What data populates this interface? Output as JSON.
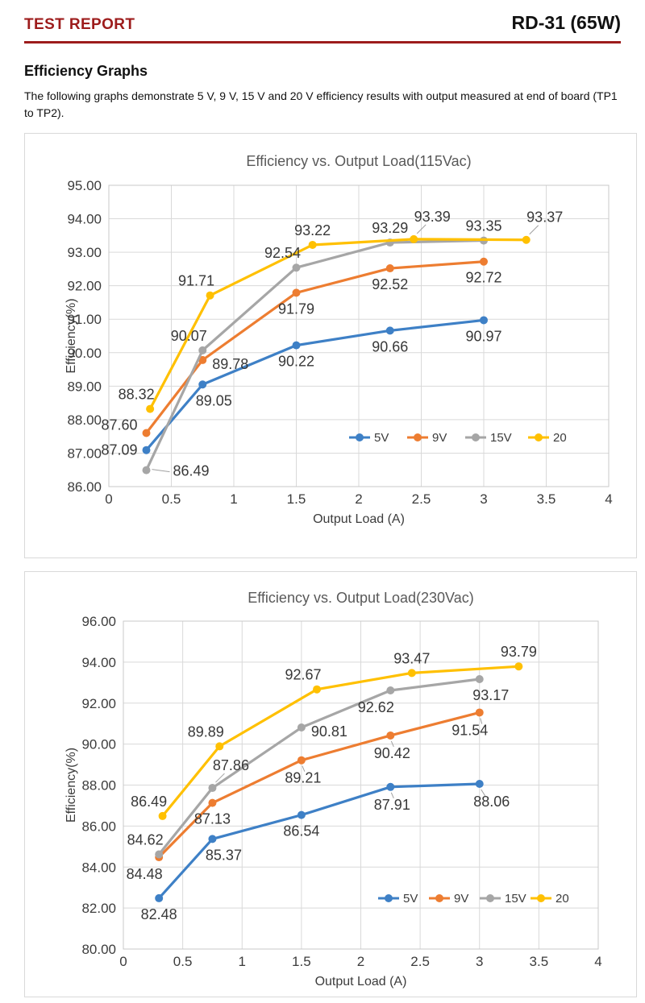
{
  "header": {
    "report_label": "TEST REPORT",
    "model_label": "RD-31 (65W)",
    "accent_color": "#9D1C1C"
  },
  "section": {
    "heading": "Efficiency Graphs",
    "body": "The following graphs demonstrate 5 V, 9 V, 15 V and 20 V efficiency results with output measured at end of board (TP1 to TP2)."
  },
  "chart_colors": {
    "blue": "#3E80C6",
    "orange": "#ED7D31",
    "gray": "#A6A6A6",
    "yellow": "#FFC000",
    "grid": "#D9D9D9",
    "plot_border": "#C8C8C8",
    "title_text": "#595959",
    "tick_text": "#3C3C3C",
    "label_text": "#383838",
    "leader": "#A0A0A0"
  },
  "chart_data": [
    {
      "type": "line",
      "title": "Efficiency vs. Output Load(115Vac)",
      "xlabel": "Output Load (A)",
      "ylabel": "Efficiency(%)",
      "xlim": [
        0,
        4
      ],
      "ylim": [
        86,
        95
      ],
      "grid": true,
      "legend_position": "inside-right-middle",
      "xticks": [
        "0",
        "0.5",
        "1",
        "1.5",
        "2",
        "2.5",
        "3",
        "3.5",
        "4"
      ],
      "yticks": [
        "95.00",
        "94.00",
        "93.00",
        "92.00",
        "91.00",
        "90.00",
        "89.00",
        "88.00",
        "87.00",
        "86.00"
      ],
      "series": [
        {
          "name": "5V",
          "color": "#3E80C6",
          "x": [
            0.3,
            0.75,
            1.5,
            2.25,
            3
          ],
          "y": [
            87.09,
            89.05,
            90.22,
            90.66,
            90.97
          ],
          "labels": [
            "87.09",
            "89.05",
            "90.22",
            "90.66",
            "90.97"
          ],
          "label_placement": [
            "left",
            "below-right",
            "below",
            "below",
            "below"
          ]
        },
        {
          "name": "9V",
          "color": "#ED7D31",
          "x": [
            0.3,
            0.75,
            1.5,
            2.25,
            3
          ],
          "y": [
            87.6,
            89.78,
            91.79,
            92.52,
            92.72
          ],
          "labels": [
            "87.60",
            "89.78",
            "91.79",
            "92.52",
            "92.72"
          ],
          "label_placement": [
            "left-up",
            "right",
            "below",
            "below",
            "below"
          ]
        },
        {
          "name": "15V",
          "color": "#A6A6A6",
          "x": [
            0.3,
            0.75,
            1.5,
            2.25,
            3
          ],
          "y": [
            86.49,
            90.07,
            92.54,
            93.29,
            93.35
          ],
          "labels": [
            "86.49",
            "90.07",
            "92.54",
            "93.29",
            "93.35"
          ],
          "label_placement": [
            "right-leader",
            "above-left",
            "above-left",
            "above",
            "above"
          ]
        },
        {
          "name": "20",
          "color": "#FFC000",
          "x": [
            0.33,
            0.81,
            1.63,
            2.44,
            3.34
          ],
          "y": [
            88.32,
            91.71,
            93.22,
            93.39,
            93.37
          ],
          "labels": [
            "88.32",
            "91.71",
            "93.22",
            "93.39",
            "93.37"
          ],
          "label_placement": [
            "above-left",
            "above-left",
            "above",
            "above-right-leader",
            "above-right-leader"
          ]
        }
      ]
    },
    {
      "type": "line",
      "title": "Efficiency vs. Output Load(230Vac)",
      "xlabel": "Output Load (A)",
      "ylabel": "Efficiency(%)",
      "xlim": [
        0,
        4
      ],
      "ylim": [
        80,
        96
      ],
      "grid": true,
      "legend_position": "inside-right-middle",
      "xticks": [
        "0",
        "0.5",
        "1",
        "1.5",
        "2",
        "2.5",
        "3",
        "3.5",
        "4"
      ],
      "yticks": [
        "96.00",
        "94.00",
        "92.00",
        "90.00",
        "88.00",
        "86.00",
        "84.00",
        "82.00",
        "80.00"
      ],
      "series": [
        {
          "name": "5V",
          "color": "#3E80C6",
          "x": [
            0.3,
            0.75,
            1.5,
            2.25,
            3
          ],
          "y": [
            82.48,
            85.37,
            86.54,
            87.91,
            88.06
          ],
          "labels": [
            "82.48",
            "85.37",
            "86.54",
            "87.91",
            "88.06"
          ],
          "label_placement": [
            "below",
            "below-right",
            "below",
            "below-tick",
            "below-right-tick"
          ]
        },
        {
          "name": "9V",
          "color": "#ED7D31",
          "x": [
            0.3,
            0.75,
            1.5,
            2.25,
            3
          ],
          "y": [
            84.48,
            87.13,
            89.21,
            90.42,
            91.54
          ],
          "labels": [
            "84.48",
            "87.13",
            "89.21",
            "90.42",
            "91.54"
          ],
          "label_placement": [
            "below-left",
            "below",
            "below-tick",
            "below-tick",
            "below-left-tick"
          ]
        },
        {
          "name": "15V",
          "color": "#A6A6A6",
          "x": [
            0.3,
            0.75,
            1.5,
            2.25,
            3
          ],
          "y": [
            84.62,
            87.86,
            90.81,
            92.62,
            93.17
          ],
          "labels": [
            "84.62",
            "87.86",
            "90.81",
            "92.62",
            "93.17"
          ],
          "label_placement": [
            "above-left",
            "above-right-leader",
            "right",
            "below-left",
            "below-right"
          ]
        },
        {
          "name": "20",
          "color": "#FFC000",
          "x": [
            0.33,
            0.81,
            1.63,
            2.43,
            3.33
          ],
          "y": [
            86.49,
            89.89,
            92.67,
            93.47,
            93.79
          ],
          "labels": [
            "86.49",
            "89.89",
            "92.67",
            "93.47",
            "93.79"
          ],
          "label_placement": [
            "above-left",
            "above-left",
            "above-left",
            "above",
            "above"
          ]
        }
      ]
    }
  ]
}
